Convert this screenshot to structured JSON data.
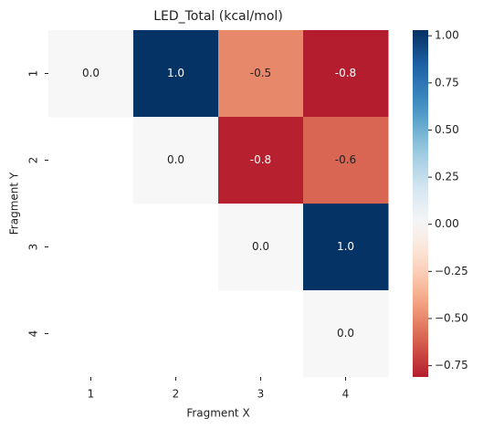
{
  "chart_data": {
    "type": "heatmap",
    "title": "LED_Total (kcal/mol)",
    "x_label": "Fragment X",
    "y_label": "Fragment Y",
    "x_categories": [
      "1",
      "2",
      "3",
      "4"
    ],
    "y_categories": [
      "1",
      "2",
      "3",
      "4"
    ],
    "values": [
      [
        0,
        1.02,
        -0.5,
        -0.81
      ],
      [
        null,
        0,
        -0.8,
        -0.6
      ],
      [
        null,
        null,
        0,
        1.02
      ],
      [
        null,
        null,
        null,
        0
      ]
    ],
    "value_labels": [
      [
        "0.0",
        "1.0",
        "-0.5",
        "-0.8"
      ],
      [
        null,
        "0.0",
        "-0.8",
        "-0.6"
      ],
      [
        null,
        null,
        "0.0",
        "1.0"
      ],
      [
        null,
        null,
        null,
        "0.0"
      ]
    ],
    "colormap": "RdBu",
    "center": 0,
    "clim": [
      -0.81,
      1.03
    ],
    "cticks": [
      {
        "value": -0.75,
        "label": "−0.75"
      },
      {
        "value": -0.5,
        "label": "−0.50"
      },
      {
        "value": -0.25,
        "label": "−0.25"
      },
      {
        "value": 0,
        "label": "0.00"
      },
      {
        "value": 0.25,
        "label": "0.25"
      },
      {
        "value": 0.5,
        "label": "0.50"
      },
      {
        "value": 0.75,
        "label": "0.75"
      },
      {
        "value": 1,
        "label": "1.00"
      }
    ]
  }
}
